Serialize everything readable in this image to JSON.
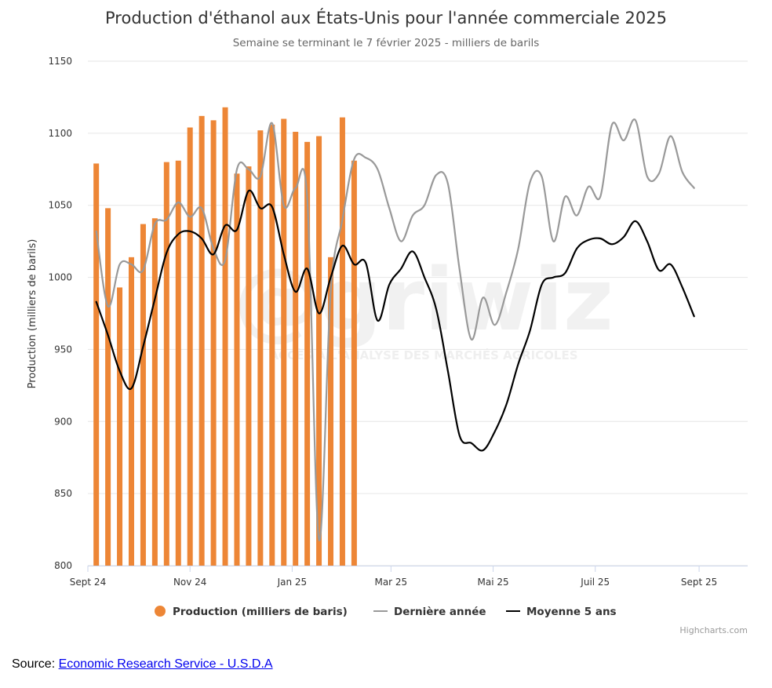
{
  "chart_data": {
    "type": "bar+line",
    "title": "Production d'éthanol aux États-Unis pour l'année commerciale 2025",
    "subtitle": "Semaine se terminant le 7 février 2025 - milliers de barils",
    "ylabel": "Production (milliers de barils)",
    "ylim": [
      800,
      1150
    ],
    "yticks": [
      800,
      850,
      900,
      950,
      1000,
      1050,
      1100,
      1150
    ],
    "xlim": [
      "2024-09-01",
      "2025-09-30"
    ],
    "xticks": [
      {
        "date": "2024-09-01",
        "label": "Sept 24"
      },
      {
        "date": "2024-11-01",
        "label": "Nov 24"
      },
      {
        "date": "2025-01-01",
        "label": "Jan 25"
      },
      {
        "date": "2025-03-01",
        "label": "Mar 25"
      },
      {
        "date": "2025-05-01",
        "label": "Mai 25"
      },
      {
        "date": "2025-07-01",
        "label": "Juil 25"
      },
      {
        "date": "2025-09-01",
        "label": "Sept 25"
      }
    ],
    "grid": true,
    "legend": "bottom",
    "credits": "Highcharts.com",
    "watermark": "ACCÈS À L'ANALYSE DES MARCHÉS AGRICOLES",
    "series": [
      {
        "name": "Production (milliers de baris)",
        "type": "column",
        "color": "#ed8636",
        "data": [
          [
            "2024-09-06",
            1079
          ],
          [
            "2024-09-13",
            1048
          ],
          [
            "2024-09-20",
            993
          ],
          [
            "2024-09-27",
            1014
          ],
          [
            "2024-10-04",
            1037
          ],
          [
            "2024-10-11",
            1041
          ],
          [
            "2024-10-18",
            1080
          ],
          [
            "2024-10-25",
            1081
          ],
          [
            "2024-11-01",
            1104
          ],
          [
            "2024-11-08",
            1112
          ],
          [
            "2024-11-15",
            1109
          ],
          [
            "2024-11-22",
            1118
          ],
          [
            "2024-11-29",
            1072
          ],
          [
            "2024-12-06",
            1077
          ],
          [
            "2024-12-13",
            1102
          ],
          [
            "2024-12-20",
            1106
          ],
          [
            "2024-12-27",
            1110
          ],
          [
            "2025-01-03",
            1101
          ],
          [
            "2025-01-10",
            1094
          ],
          [
            "2025-01-17",
            1098
          ],
          [
            "2025-01-24",
            1014
          ],
          [
            "2025-01-31",
            1111
          ],
          [
            "2025-02-07",
            1081
          ]
        ]
      },
      {
        "name": "Dernière année",
        "type": "spline",
        "color": "#999999",
        "data": [
          [
            "2024-09-06",
            1032
          ],
          [
            "2024-09-13",
            980
          ],
          [
            "2024-09-20",
            1009
          ],
          [
            "2024-09-27",
            1009
          ],
          [
            "2024-10-04",
            1005
          ],
          [
            "2024-10-11",
            1037
          ],
          [
            "2024-10-18",
            1040
          ],
          [
            "2024-10-25",
            1052
          ],
          [
            "2024-11-01",
            1042
          ],
          [
            "2024-11-08",
            1048
          ],
          [
            "2024-11-15",
            1020
          ],
          [
            "2024-11-22",
            1012
          ],
          [
            "2024-11-29",
            1075
          ],
          [
            "2024-12-06",
            1075
          ],
          [
            "2024-12-13",
            1070
          ],
          [
            "2024-12-20",
            1107
          ],
          [
            "2024-12-27",
            1050
          ],
          [
            "2025-01-03",
            1062
          ],
          [
            "2025-01-10",
            1055
          ],
          [
            "2025-01-17",
            818
          ],
          [
            "2025-01-24",
            990
          ],
          [
            "2025-01-31",
            1040
          ],
          [
            "2025-02-07",
            1082
          ],
          [
            "2025-02-14",
            1083
          ],
          [
            "2025-02-21",
            1075
          ],
          [
            "2025-02-28",
            1048
          ],
          [
            "2025-03-07",
            1025
          ],
          [
            "2025-03-14",
            1043
          ],
          [
            "2025-03-21",
            1050
          ],
          [
            "2025-03-28",
            1071
          ],
          [
            "2025-04-04",
            1065
          ],
          [
            "2025-04-11",
            1005
          ],
          [
            "2025-04-18",
            957
          ],
          [
            "2025-04-25",
            986
          ],
          [
            "2025-05-02",
            967
          ],
          [
            "2025-05-09",
            990
          ],
          [
            "2025-05-16",
            1020
          ],
          [
            "2025-05-23",
            1066
          ],
          [
            "2025-05-30",
            1070
          ],
          [
            "2025-06-06",
            1025
          ],
          [
            "2025-06-13",
            1056
          ],
          [
            "2025-06-20",
            1043
          ],
          [
            "2025-06-27",
            1063
          ],
          [
            "2025-07-04",
            1056
          ],
          [
            "2025-07-11",
            1106
          ],
          [
            "2025-07-18",
            1095
          ],
          [
            "2025-07-25",
            1109
          ],
          [
            "2025-08-01",
            1070
          ],
          [
            "2025-08-08",
            1072
          ],
          [
            "2025-08-15",
            1098
          ],
          [
            "2025-08-22",
            1073
          ],
          [
            "2025-08-29",
            1062
          ]
        ]
      },
      {
        "name": "Moyenne 5 ans",
        "type": "spline",
        "color": "#000000",
        "data": [
          [
            "2024-09-06",
            983
          ],
          [
            "2024-09-13",
            960
          ],
          [
            "2024-09-20",
            935
          ],
          [
            "2024-09-27",
            923
          ],
          [
            "2024-10-04",
            952
          ],
          [
            "2024-10-11",
            985
          ],
          [
            "2024-10-18",
            1017
          ],
          [
            "2024-10-25",
            1030
          ],
          [
            "2024-11-01",
            1032
          ],
          [
            "2024-11-08",
            1027
          ],
          [
            "2024-11-15",
            1016
          ],
          [
            "2024-11-22",
            1036
          ],
          [
            "2024-11-29",
            1033
          ],
          [
            "2024-12-06",
            1060
          ],
          [
            "2024-12-13",
            1048
          ],
          [
            "2024-12-20",
            1049
          ],
          [
            "2024-12-27",
            1016
          ],
          [
            "2025-01-03",
            990
          ],
          [
            "2025-01-10",
            1006
          ],
          [
            "2025-01-17",
            975
          ],
          [
            "2025-01-24",
            1000
          ],
          [
            "2025-01-31",
            1022
          ],
          [
            "2025-02-07",
            1009
          ],
          [
            "2025-02-14",
            1010
          ],
          [
            "2025-02-21",
            970
          ],
          [
            "2025-02-28",
            995
          ],
          [
            "2025-03-07",
            1006
          ],
          [
            "2025-03-14",
            1018
          ],
          [
            "2025-03-21",
            1000
          ],
          [
            "2025-03-28",
            978
          ],
          [
            "2025-04-04",
            935
          ],
          [
            "2025-04-11",
            890
          ],
          [
            "2025-04-18",
            885
          ],
          [
            "2025-04-25",
            880
          ],
          [
            "2025-05-02",
            893
          ],
          [
            "2025-05-09",
            912
          ],
          [
            "2025-05-16",
            940
          ],
          [
            "2025-05-23",
            963
          ],
          [
            "2025-05-30",
            995
          ],
          [
            "2025-06-06",
            1000
          ],
          [
            "2025-06-13",
            1003
          ],
          [
            "2025-06-20",
            1020
          ],
          [
            "2025-06-27",
            1026
          ],
          [
            "2025-07-04",
            1027
          ],
          [
            "2025-07-11",
            1023
          ],
          [
            "2025-07-18",
            1028
          ],
          [
            "2025-07-25",
            1039
          ],
          [
            "2025-08-01",
            1025
          ],
          [
            "2025-08-08",
            1005
          ],
          [
            "2025-08-15",
            1009
          ],
          [
            "2025-08-22",
            993
          ],
          [
            "2025-08-29",
            973
          ]
        ]
      }
    ]
  },
  "source": {
    "label": "Source:",
    "link_text": "Economic Research Service - U.S.D.A"
  }
}
